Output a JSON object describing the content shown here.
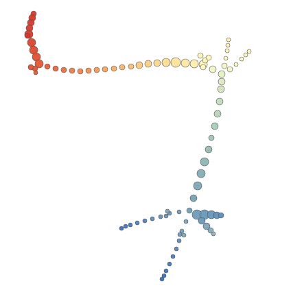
{
  "diagram": {
    "type": "trajectory-dot-plot",
    "marker": "circle",
    "marker_outline": "#555555",
    "palette": [
      "#d73027",
      "#f46d43",
      "#fdae61",
      "#fee090",
      "#ffffbf",
      "#e0f3f8",
      "#abd9e9",
      "#74add1",
      "#4575b4"
    ],
    "legend": "none",
    "axes": "none",
    "grid": false
  },
  "colors": {
    "background": "#ffffff",
    "outline": "#555555"
  }
}
